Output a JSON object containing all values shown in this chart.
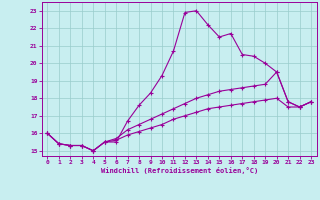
{
  "xlabel": "Windchill (Refroidissement éolien,°C)",
  "ylabel": "",
  "bg_color": "#c8eef0",
  "line_color": "#990099",
  "grid_color": "#99cccc",
  "xlim_min": -0.5,
  "xlim_max": 23.5,
  "ylim_min": 14.7,
  "ylim_max": 23.5,
  "yticks": [
    15,
    16,
    17,
    18,
    19,
    20,
    21,
    22,
    23
  ],
  "xticks": [
    0,
    1,
    2,
    3,
    4,
    5,
    6,
    7,
    8,
    9,
    10,
    11,
    12,
    13,
    14,
    15,
    16,
    17,
    18,
    19,
    20,
    21,
    22,
    23
  ],
  "line1_x": [
    0,
    1,
    2,
    3,
    4,
    5,
    6,
    7,
    8,
    9,
    10,
    11,
    12,
    13,
    14,
    15,
    16,
    17,
    18,
    19,
    20,
    21,
    22,
    23
  ],
  "line1_y": [
    16.0,
    15.4,
    15.3,
    15.3,
    15.0,
    15.5,
    15.5,
    16.7,
    17.6,
    18.3,
    19.3,
    20.7,
    22.9,
    23.0,
    22.2,
    21.5,
    21.7,
    20.5,
    20.4,
    20.0,
    19.5,
    17.8,
    17.5,
    17.8
  ],
  "line2_x": [
    0,
    1,
    2,
    3,
    4,
    5,
    6,
    7,
    8,
    9,
    10,
    11,
    12,
    13,
    14,
    15,
    16,
    17,
    18,
    19,
    20,
    21,
    22,
    23
  ],
  "line2_y": [
    16.0,
    15.4,
    15.3,
    15.3,
    15.0,
    15.5,
    15.7,
    16.2,
    16.5,
    16.8,
    17.1,
    17.4,
    17.7,
    18.0,
    18.2,
    18.4,
    18.5,
    18.6,
    18.7,
    18.8,
    19.5,
    17.8,
    17.5,
    17.8
  ],
  "line3_x": [
    0,
    1,
    2,
    3,
    4,
    5,
    6,
    7,
    8,
    9,
    10,
    11,
    12,
    13,
    14,
    15,
    16,
    17,
    18,
    19,
    20,
    21,
    22,
    23
  ],
  "line3_y": [
    16.0,
    15.4,
    15.3,
    15.3,
    15.0,
    15.5,
    15.6,
    15.9,
    16.1,
    16.3,
    16.5,
    16.8,
    17.0,
    17.2,
    17.4,
    17.5,
    17.6,
    17.7,
    17.8,
    17.9,
    18.0,
    17.5,
    17.5,
    17.8
  ]
}
